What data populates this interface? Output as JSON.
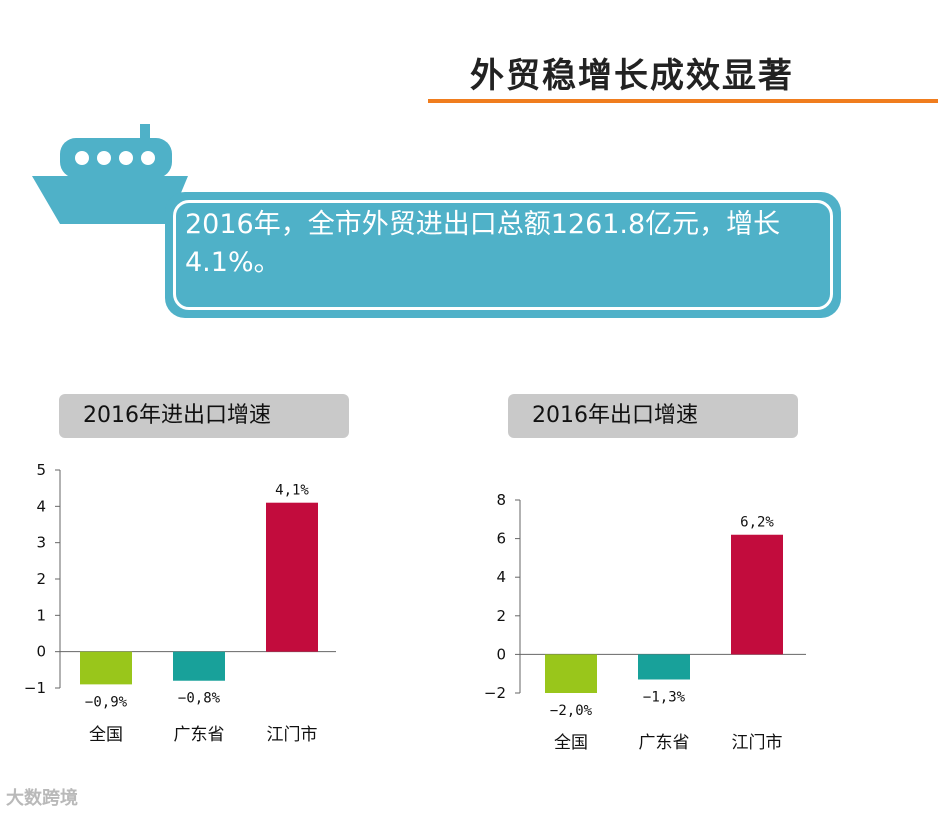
{
  "header": {
    "title": "外贸稳增长成效显著"
  },
  "callout": {
    "text": "2016年，全市外贸进出口总额1261.8亿元，增长4.1%。"
  },
  "watermark": {
    "text": "大数跨境"
  },
  "colors": {
    "green": "#99c61b",
    "teal": "#18a19a",
    "crimson": "#c20c3d",
    "orange_rule": "#f07d1e",
    "callout_bg": "#4fb1c8"
  },
  "chart_data": [
    {
      "type": "bar",
      "title": "2016年进出口增速",
      "categories": [
        "全国",
        "广东省",
        "江门市"
      ],
      "values": [
        -0.9,
        -0.8,
        4.1
      ],
      "value_labels": [
        "−0,9%",
        "−0,8%",
        "4,1%"
      ],
      "bar_colors": [
        "#99c61b",
        "#18a19a",
        "#c20c3d"
      ],
      "ylim": [
        -1,
        5
      ],
      "yticks": [
        -1,
        0,
        1,
        2,
        3,
        4,
        5
      ],
      "ytick_labels": [
        "−1",
        "0",
        "1",
        "2",
        "3",
        "4",
        "5"
      ],
      "grid": false
    },
    {
      "type": "bar",
      "title": "2016年出口增速",
      "categories": [
        "全国",
        "广东省",
        "江门市"
      ],
      "values": [
        -2.0,
        -1.3,
        6.2
      ],
      "value_labels": [
        "−2,0%",
        "−1,3%",
        "6,2%"
      ],
      "bar_colors": [
        "#99c61b",
        "#18a19a",
        "#c20c3d"
      ],
      "ylim": [
        -2,
        8
      ],
      "yticks": [
        -2,
        0,
        2,
        4,
        6,
        8
      ],
      "ytick_labels": [
        "−2",
        "0",
        "2",
        "4",
        "6",
        "8"
      ],
      "grid": false
    }
  ]
}
